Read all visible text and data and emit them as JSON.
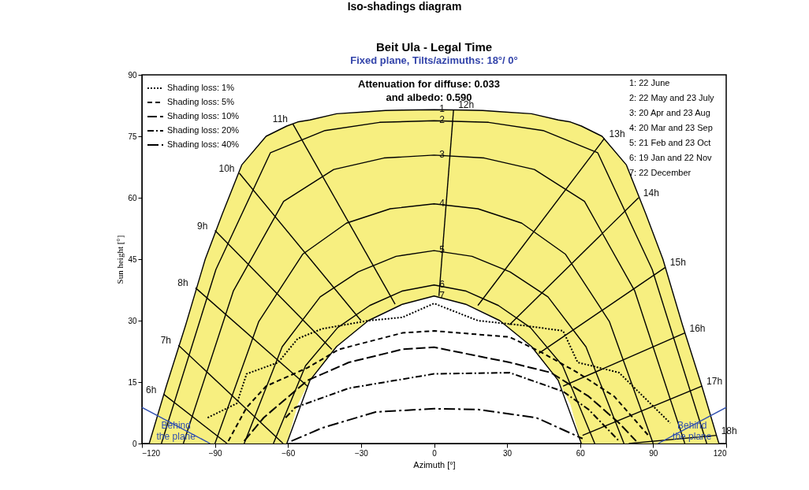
{
  "chart_data": {
    "type": "line",
    "title": "Beit Ula - Legal Time",
    "subtitle": "Fixed plane, Tilts/azimuths: 18°/ 0°",
    "xlabel": "Azimuth [°]",
    "ylabel": "Sun height [°]",
    "xlim": [
      -120,
      120
    ],
    "ylim": [
      0,
      90
    ],
    "xticks": [
      -120,
      -90,
      -60,
      -30,
      0,
      30,
      60,
      90,
      120
    ],
    "yticks": [
      0,
      15,
      30,
      45,
      60,
      75,
      90
    ],
    "legend": "top left",
    "series": [
      {
        "color": "#000000",
        "x": [
          -117,
          -110,
          -102,
          -94,
          -87,
          -79,
          -69,
          -60.5,
          -56,
          -51,
          -40,
          -27,
          -20,
          -13,
          0,
          13,
          20,
          27,
          40,
          51,
          56,
          60.5,
          69,
          79,
          87,
          94,
          102,
          110,
          117
        ],
        "values": [
          0,
          14,
          29,
          45,
          56,
          68,
          75,
          77.5,
          78.5,
          79,
          80.5,
          81,
          81.3,
          81.4,
          81.5,
          81.4,
          81.3,
          81,
          80.5,
          79,
          78.5,
          77.5,
          75,
          68,
          56,
          45,
          29,
          14,
          0
        ],
        "upper": [
          0,
          14,
          29,
          45,
          56,
          68,
          75,
          77.5,
          78.5,
          79,
          80.5,
          81,
          81.3,
          81.4,
          81.5,
          81.4,
          81.3,
          81,
          80.5,
          79,
          78.5,
          77.5,
          75,
          68,
          56,
          45,
          29,
          14,
          0
        ],
        "lower": [
          0,
          0,
          0,
          0,
          0,
          0,
          0,
          0,
          9.5,
          15.4,
          23.7,
          30,
          32.2,
          34,
          36,
          34,
          32.2,
          30,
          23.7,
          15.4,
          9.5,
          0,
          0,
          0,
          0,
          0,
          0,
          0,
          0
        ]
      },
      {
        "color": "#000000",
        "x": [
          -112,
          -89.6,
          -67.2,
          -44.8,
          -22.4,
          0,
          22.4,
          44.8,
          67.2,
          89.6,
          112
        ],
        "values": [
          0,
          42.5,
          71,
          76.4,
          78.4,
          78.8,
          78.4,
          76.4,
          71,
          42.5,
          0
        ]
      },
      {
        "color": "#000000",
        "x": [
          -103,
          -82.4,
          -61.8,
          -41.2,
          -20.6,
          0,
          20.6,
          41.2,
          61.8,
          82.4,
          103
        ],
        "values": [
          0,
          37.3,
          59.1,
          66.9,
          69.7,
          70.4,
          69.7,
          66.9,
          59.1,
          37.3,
          0
        ]
      },
      {
        "color": "#000000",
        "x": [
          -90,
          -72,
          -54,
          -36,
          -18,
          0,
          18,
          36,
          54,
          72,
          90
        ],
        "values": [
          0,
          29.8,
          46.2,
          53.8,
          57.3,
          58.5,
          57.3,
          53.8,
          46.2,
          29.8,
          0
        ]
      },
      {
        "color": "#000000",
        "x": [
          -78,
          -62.4,
          -46.8,
          -31.2,
          -15.6,
          0,
          15.6,
          31.2,
          46.8,
          62.4,
          78
        ],
        "values": [
          0,
          23.6,
          35.8,
          41.9,
          45.7,
          47.1,
          45.7,
          41.9,
          35.8,
          23.6,
          0
        ]
      },
      {
        "color": "#000000",
        "x": [
          -66,
          -52.8,
          -39.6,
          -26.4,
          -13.2,
          0,
          13.2,
          26.4,
          39.6,
          52.8,
          66
        ],
        "values": [
          0,
          19,
          28.3,
          33.7,
          37.2,
          38.7,
          37.2,
          33.7,
          28.3,
          19,
          0
        ]
      },
      {
        "color": "#000000",
        "x": [
          -60.5,
          -51,
          -40,
          -27,
          -13,
          0,
          13,
          27,
          40,
          51,
          60.5
        ],
        "values": [
          0,
          15.4,
          23.7,
          30,
          34,
          36,
          34,
          30,
          23.7,
          15.4,
          0
        ]
      },
      {
        "color": "#000000",
        "x": [
          -111,
          -85
        ],
        "values": [
          12,
          0
        ]
      },
      {
        "color": "#000000",
        "x": [
          -105,
          -62
        ],
        "values": [
          24,
          0
        ]
      },
      {
        "color": "#000000",
        "x": [
          -98,
          -52
        ],
        "values": [
          38,
          14
        ]
      },
      {
        "color": "#000000",
        "x": [
          -90,
          -42
        ],
        "values": [
          52,
          23
        ]
      },
      {
        "color": "#000000",
        "x": [
          -80,
          -30
        ],
        "values": [
          66,
          30
        ]
      },
      {
        "color": "#000000",
        "x": [
          -58,
          -16
        ],
        "values": [
          78,
          34
        ]
      },
      {
        "color": "#000000",
        "x": [
          8,
          2
        ],
        "values": [
          81.5,
          36
        ]
      },
      {
        "color": "#000000",
        "x": [
          70,
          18
        ],
        "values": [
          74.5,
          33.7
        ]
      },
      {
        "color": "#000000",
        "x": [
          84,
          31
        ],
        "values": [
          60,
          29
        ]
      },
      {
        "color": "#000000",
        "x": [
          95,
          43
        ],
        "values": [
          43,
          22
        ]
      },
      {
        "color": "#000000",
        "x": [
          103,
          53
        ],
        "values": [
          27,
          14
        ]
      },
      {
        "color": "#000000",
        "x": [
          110,
          61
        ],
        "values": [
          14,
          2
        ]
      },
      {
        "color": "#000000",
        "x": [
          116,
          80
        ],
        "values": [
          2,
          0
        ]
      },
      {
        "color": "#3050b0",
        "x": [
          -120,
          -92
        ],
        "values": [
          8.8,
          0
        ]
      },
      {
        "color": "#3050b0",
        "x": [
          92,
          120
        ],
        "values": [
          0,
          8.8
        ]
      },
      {
        "name": "Shading loss: 1%",
        "color": "#000000",
        "line_style": "dotted",
        "x": [
          -93,
          -81,
          -77,
          -64,
          -56,
          -46,
          -27,
          -13,
          0,
          18,
          37,
          53,
          59,
          76,
          97
        ],
        "values": [
          6.3,
          9.8,
          17,
          19.8,
          25.6,
          28,
          30,
          30.8,
          34.2,
          30,
          28.8,
          27.5,
          19.8,
          17.3,
          5
        ]
      },
      {
        "name": "Shading loss: 5%",
        "color": "#000000",
        "line_style": "dashed",
        "x": [
          -84.5,
          -77,
          -69,
          -52,
          -39,
          -13,
          0,
          31,
          44,
          59,
          74,
          88
        ],
        "values": [
          0.6,
          8.8,
          14,
          18.5,
          23,
          27,
          27.5,
          26,
          22.3,
          17.3,
          11.5,
          2
        ]
      },
      {
        "name": "Shading loss: 10%",
        "color": "#000000",
        "line_style": "longdash",
        "x": [
          -78,
          -70,
          -52,
          -35,
          -13,
          0,
          31,
          48,
          63.5,
          76,
          83
        ],
        "values": [
          0.6,
          6.3,
          15.4,
          19.8,
          23,
          23.5,
          19.8,
          17.3,
          11.5,
          5,
          0.6
        ]
      },
      {
        "name": "Shading loss: 20%",
        "color": "#000000",
        "line_style": "dashdot",
        "x": [
          -61,
          -57,
          -35,
          0,
          31,
          53,
          63.5,
          76
        ],
        "values": [
          6.3,
          8.8,
          13.5,
          17,
          17.3,
          12.7,
          8.3,
          0.6
        ]
      },
      {
        "name": "Shading loss: 40%",
        "color": "#000000",
        "line_style": "longdashdot",
        "x": [
          -58.6,
          -46,
          -24,
          0,
          18,
          42,
          61
        ],
        "values": [
          0.6,
          3.8,
          7.7,
          8.5,
          8.3,
          6.3,
          1.2
        ]
      }
    ],
    "annotations": [
      "Iso-shadings diagram",
      "Attenuation for diffuse: 0.033",
      "and albedo: 0.590",
      "1: 22 June",
      "2: 22 May and 23 July",
      "3: 20 Apr and 23 Aug",
      "4: 20 Mar and 23 Sep",
      "5: 21 Feb and 23 Oct",
      "6: 19 Jan and 22 Nov",
      "7: 22 December",
      {
        "text": "6h",
        "x": -111,
        "y": 12
      },
      {
        "text": "7h",
        "x": -105,
        "y": 24
      },
      {
        "text": "8h",
        "x": -98,
        "y": 38
      },
      {
        "text": "9h",
        "x": -90,
        "y": 52
      },
      {
        "text": "10h",
        "x": -80,
        "y": 66
      },
      {
        "text": "11h",
        "x": -58,
        "y": 78
      },
      {
        "text": "12h",
        "x": 8,
        "y": 81.5
      },
      {
        "text": "13h",
        "x": 70,
        "y": 74.5
      },
      {
        "text": "14h",
        "x": 84,
        "y": 60
      },
      {
        "text": "15h",
        "x": 95,
        "y": 43
      },
      {
        "text": "16h",
        "x": 103,
        "y": 27
      },
      {
        "text": "17h",
        "x": 110,
        "y": 14
      },
      {
        "text": "18h",
        "x": 116,
        "y": 2
      },
      {
        "text": "1",
        "x": 0,
        "y": 81.5
      },
      {
        "text": "2",
        "x": 0,
        "y": 78.8
      },
      {
        "text": "3",
        "x": 0,
        "y": 70.4
      },
      {
        "text": "4",
        "x": 0,
        "y": 58.5
      },
      {
        "text": "5",
        "x": 0,
        "y": 47.1
      },
      {
        "text": "6",
        "x": 0,
        "y": 38.7
      },
      {
        "text": "7",
        "x": 0,
        "y": 36
      },
      {
        "text": "Behind\nthe plane",
        "x": -106,
        "y": 4.4
      },
      {
        "text": "Behind\nthe plane",
        "x": 106,
        "y": 4.4
      }
    ]
  }
}
